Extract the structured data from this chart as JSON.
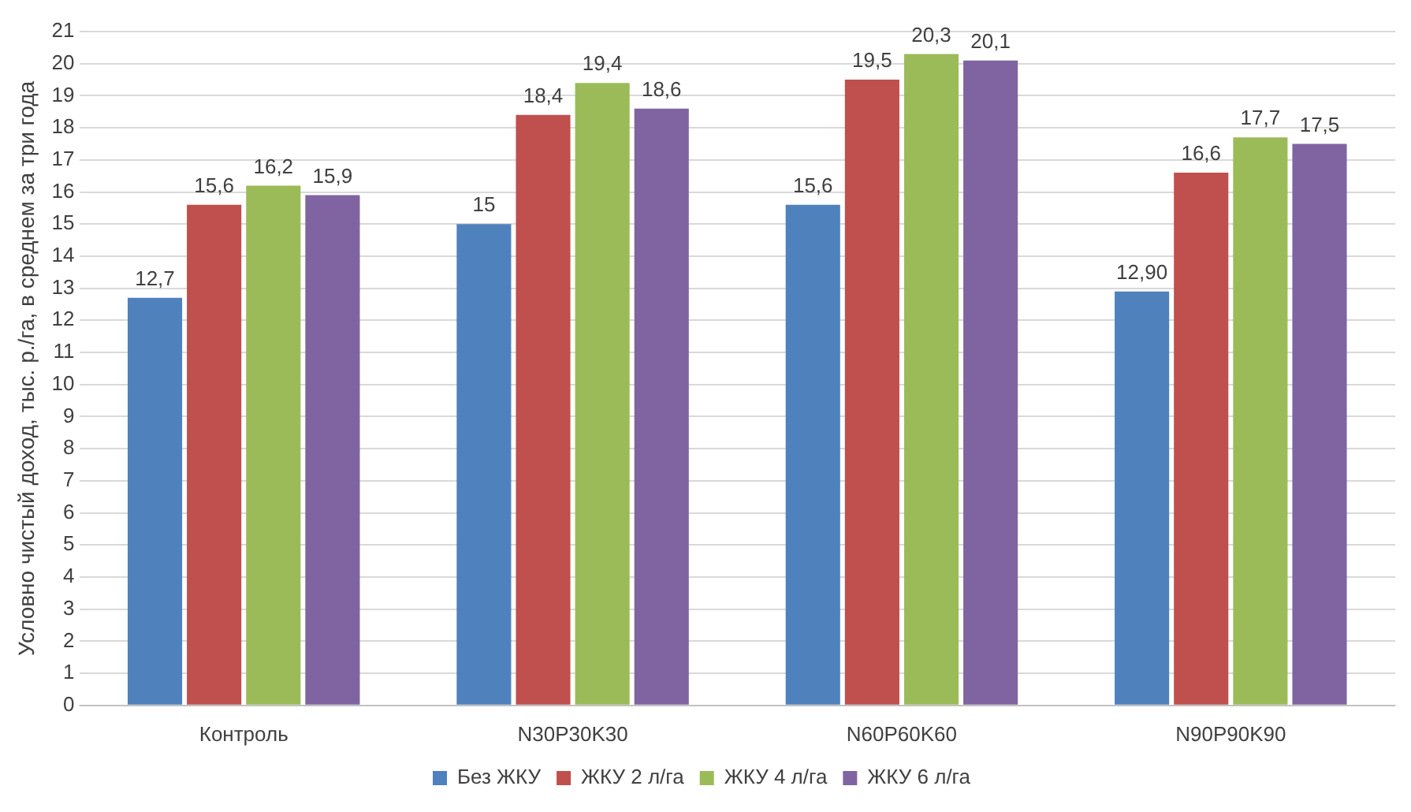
{
  "chart_data": {
    "type": "bar",
    "ylabel": "Условно чистый доход, тыс. р./га, в среднем за три года",
    "categories": [
      "Контроль",
      "N30P30K30",
      "N60P60K60",
      "N90P90K90"
    ],
    "series": [
      {
        "name": "Без ЖКУ",
        "color": "#4f81bd",
        "values": [
          12.7,
          15,
          15.6,
          12.9
        ],
        "value_labels": [
          "12,7",
          "15",
          "15,6",
          "12,90"
        ]
      },
      {
        "name": "ЖКУ 2 л/га",
        "color": "#c0504d",
        "values": [
          15.6,
          18.4,
          19.5,
          16.6
        ],
        "value_labels": [
          "15,6",
          "18,4",
          "19,5",
          "16,6"
        ]
      },
      {
        "name": "ЖКУ 4 л/га",
        "color": "#9bbb59",
        "values": [
          16.2,
          19.4,
          20.3,
          17.7
        ],
        "value_labels": [
          "16,2",
          "19,4",
          "20,3",
          "17,7"
        ]
      },
      {
        "name": "ЖКУ 6 л/га",
        "color": "#8064a2",
        "values": [
          15.9,
          18.6,
          20.1,
          17.5
        ],
        "value_labels": [
          "15,9",
          "18,6",
          "20,1",
          "17,5"
        ]
      }
    ],
    "ylim": [
      0,
      21
    ],
    "yticks": [
      0,
      1,
      2,
      3,
      4,
      5,
      6,
      7,
      8,
      9,
      10,
      11,
      12,
      13,
      14,
      15,
      16,
      17,
      18,
      19,
      20,
      21
    ],
    "grid": "y",
    "legend": "bottom"
  }
}
